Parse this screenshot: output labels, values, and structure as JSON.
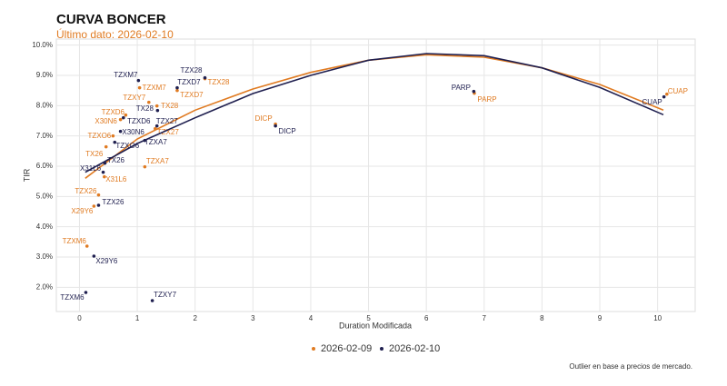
{
  "chart_data": {
    "type": "scatter",
    "title": "CURVA BONCER",
    "subtitle": "Último dato: 2026-02-10",
    "x_label": "Duration Modificada",
    "y_label": "TIR",
    "caption": "Outlier en base a precios de mercado.",
    "xlim": [
      -0.4,
      10.65
    ],
    "ylim": [
      1.2,
      10.2
    ],
    "xticks": [
      0,
      1,
      2,
      3,
      4,
      5,
      6,
      7,
      8,
      9,
      10
    ],
    "yticks": [
      {
        "value": 2,
        "label": "2.0%"
      },
      {
        "value": 3,
        "label": "3.0%"
      },
      {
        "value": 4,
        "label": "4.0%"
      },
      {
        "value": 5,
        "label": "5.0%"
      },
      {
        "value": 6,
        "label": "6.0%"
      },
      {
        "value": 7,
        "label": "7.0%"
      },
      {
        "value": 8,
        "label": "8.0%"
      },
      {
        "value": 9,
        "label": "9.0%"
      },
      {
        "value": 10,
        "label": "10.0%"
      }
    ],
    "grid": true,
    "legend_position": "bottom",
    "series": [
      {
        "name": "2026-02-09",
        "color": "#e07b22",
        "labels": [
          "TZXM7",
          "TZX28",
          "TZXD7",
          "TZXY7",
          "TX28",
          "TZXD6",
          "X30N6",
          "TZX27",
          "TZXO6",
          "TX26",
          "TZXA7",
          "X31L6",
          "TZX26",
          "X29Y6",
          "TZXM6",
          "DICP",
          "PARP",
          "CUAP"
        ],
        "x": [
          1.04,
          2.17,
          1.69,
          1.2,
          1.34,
          0.8,
          0.71,
          1.31,
          0.58,
          0.46,
          1.13,
          0.43,
          0.33,
          0.25,
          0.13,
          3.39,
          6.83,
          10.16
        ],
        "values": [
          8.59,
          8.89,
          8.5,
          8.11,
          7.99,
          7.69,
          7.54,
          7.24,
          7.0,
          6.64,
          5.98,
          5.65,
          5.05,
          4.68,
          3.36,
          7.39,
          8.41,
          8.38
        ],
        "curve_x": [
          0.1,
          1,
          2,
          3,
          4,
          5,
          6,
          7,
          8,
          9,
          10.1
        ],
        "curve_y": [
          5.6,
          6.9,
          7.85,
          8.55,
          9.1,
          9.5,
          9.68,
          9.6,
          9.25,
          8.7,
          7.85
        ]
      },
      {
        "name": "2026-02-10",
        "color": "#1f1f4f",
        "labels": [
          "TZXM7",
          "TZX28",
          "TZXD7",
          "TX28",
          "TZXD6",
          "TZX27",
          "X30N6",
          "TZXO6",
          "TZXA7",
          "TX26",
          "X31L6",
          "TZX26",
          "X29Y6",
          "TZXM6",
          "TZXY7",
          "DICP",
          "PARP",
          "CUAP"
        ],
        "x": [
          1.02,
          2.17,
          1.69,
          1.35,
          0.76,
          1.34,
          0.71,
          0.61,
          1.13,
          0.44,
          0.41,
          0.33,
          0.25,
          0.11,
          1.26,
          3.39,
          6.82,
          10.11
        ],
        "values": [
          8.83,
          8.92,
          8.59,
          7.84,
          7.6,
          7.33,
          7.15,
          6.79,
          6.85,
          6.1,
          5.8,
          4.71,
          3.03,
          1.83,
          1.56,
          7.33,
          8.47,
          8.29
        ],
        "curve_x": [
          0.1,
          1,
          2,
          3,
          4,
          5,
          6,
          7,
          8,
          9,
          10.1
        ],
        "curve_y": [
          5.8,
          6.75,
          7.6,
          8.4,
          9.0,
          9.5,
          9.72,
          9.65,
          9.25,
          8.6,
          7.7
        ]
      }
    ]
  }
}
